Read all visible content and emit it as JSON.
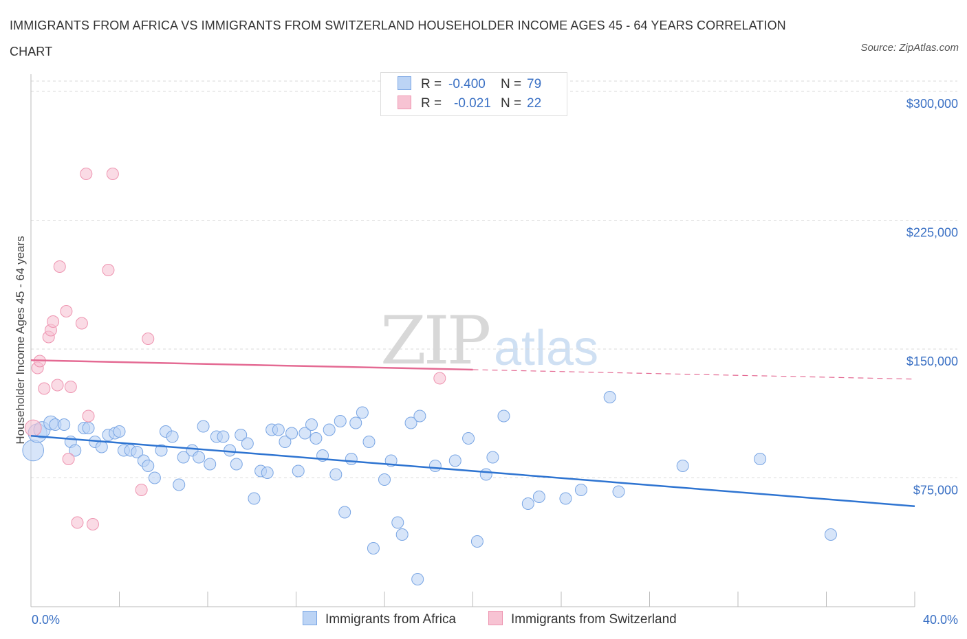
{
  "title": "IMMIGRANTS FROM AFRICA VS IMMIGRANTS FROM SWITZERLAND HOUSEHOLDER INCOME AGES 45 - 64 YEARS CORRELATION CHART",
  "source": "Source: ZipAtlas.com",
  "watermark": {
    "zip": "ZIP",
    "atlas": "atlas"
  },
  "legend": {
    "africa": {
      "r_label": "R =",
      "r_value": "-0.400",
      "n_label": "N =",
      "n_value": "79"
    },
    "switzerland": {
      "r_label": "R =",
      "r_value": "-0.021",
      "n_label": "N =",
      "n_value": "22"
    }
  },
  "bottom_legend": {
    "africa": "Immigrants from Africa",
    "switzerland": "Immigrants from Switzerland"
  },
  "colors": {
    "africa_fill": "#bcd4f5",
    "africa_stroke": "#7aa6e4",
    "africa_line": "#2e74d1",
    "swiss_fill": "#f7c3d3",
    "swiss_stroke": "#ee94b0",
    "swiss_line": "#e46a93",
    "grid": "#d9d9d9",
    "tick": "#3a70c4"
  },
  "chart_data": {
    "type": "scatter",
    "title": "IMMIGRANTS FROM AFRICA VS IMMIGRANTS FROM SWITZERLAND HOUSEHOLDER INCOME AGES 45 - 64 YEARS CORRELATION CHART",
    "xlabel": "",
    "ylabel": "Householder Income Ages 45 - 64 years",
    "xlim": [
      0,
      40
    ],
    "ylim": [
      0,
      300000
    ],
    "x_tick_labels": [
      "0.0%",
      "40.0%"
    ],
    "y_ticks": [
      75000,
      150000,
      225000,
      300000
    ],
    "y_tick_labels": [
      "$75,000",
      "$150,000",
      "$225,000",
      "$300,000"
    ],
    "grid": true,
    "legend_position": "top-center",
    "series": [
      {
        "name": "Immigrants from Africa",
        "points": [
          [
            0.1,
            91000,
            1.8
          ],
          [
            0.3,
            101000,
            1.6
          ],
          [
            0.5,
            103000,
            1.4
          ],
          [
            0.9,
            107000,
            1.2
          ],
          [
            1.1,
            106000,
            1.0
          ],
          [
            1.5,
            106000,
            1.0
          ],
          [
            1.8,
            96000,
            1.0
          ],
          [
            2.0,
            91000,
            1.0
          ],
          [
            2.4,
            104000,
            1.0
          ],
          [
            2.6,
            104000,
            1.0
          ],
          [
            2.9,
            96000,
            1.0
          ],
          [
            3.2,
            93000,
            1.0
          ],
          [
            3.5,
            100000,
            1.0
          ],
          [
            3.8,
            101000,
            1.0
          ],
          [
            4.0,
            102000,
            1.0
          ],
          [
            4.2,
            91000,
            1.0
          ],
          [
            4.5,
            91000,
            1.0
          ],
          [
            4.8,
            90000,
            1.0
          ],
          [
            5.1,
            85000,
            1.0
          ],
          [
            5.3,
            82000,
            1.0
          ],
          [
            5.6,
            75000,
            1.0
          ],
          [
            5.9,
            91000,
            1.0
          ],
          [
            6.1,
            102000,
            1.0
          ],
          [
            6.4,
            99000,
            1.0
          ],
          [
            6.7,
            71000,
            1.0
          ],
          [
            6.9,
            87000,
            1.0
          ],
          [
            7.3,
            91000,
            1.0
          ],
          [
            7.6,
            87000,
            1.0
          ],
          [
            7.8,
            105000,
            1.0
          ],
          [
            8.1,
            83000,
            1.0
          ],
          [
            8.4,
            99000,
            1.0
          ],
          [
            8.7,
            99000,
            1.0
          ],
          [
            9.0,
            91000,
            1.0
          ],
          [
            9.3,
            83000,
            1.0
          ],
          [
            9.5,
            100000,
            1.0
          ],
          [
            9.8,
            95000,
            1.0
          ],
          [
            10.1,
            63000,
            1.0
          ],
          [
            10.4,
            79000,
            1.0
          ],
          [
            10.7,
            78000,
            1.0
          ],
          [
            10.9,
            103000,
            1.0
          ],
          [
            11.2,
            103000,
            1.0
          ],
          [
            11.5,
            96000,
            1.0
          ],
          [
            11.8,
            101000,
            1.0
          ],
          [
            12.1,
            79000,
            1.0
          ],
          [
            12.4,
            101000,
            1.0
          ],
          [
            12.7,
            106000,
            1.0
          ],
          [
            12.9,
            98000,
            1.0
          ],
          [
            13.2,
            88000,
            1.0
          ],
          [
            13.5,
            103000,
            1.0
          ],
          [
            13.8,
            77000,
            1.0
          ],
          [
            14.0,
            108000,
            1.0
          ],
          [
            14.2,
            55000,
            1.0
          ],
          [
            14.5,
            86000,
            1.0
          ],
          [
            14.7,
            107000,
            1.0
          ],
          [
            15.0,
            113000,
            1.0
          ],
          [
            15.3,
            96000,
            1.0
          ],
          [
            15.5,
            34000,
            1.0
          ],
          [
            16.0,
            74000,
            1.0
          ],
          [
            16.3,
            85000,
            1.0
          ],
          [
            16.6,
            49000,
            1.0
          ],
          [
            16.8,
            42000,
            1.0
          ],
          [
            17.2,
            107000,
            1.0
          ],
          [
            17.5,
            16000,
            1.0
          ],
          [
            17.6,
            111000,
            1.0
          ],
          [
            18.3,
            82000,
            1.0
          ],
          [
            19.2,
            85000,
            1.0
          ],
          [
            19.8,
            98000,
            1.0
          ],
          [
            20.2,
            38000,
            1.0
          ],
          [
            20.6,
            77000,
            1.0
          ],
          [
            20.9,
            87000,
            1.0
          ],
          [
            21.4,
            111000,
            1.0
          ],
          [
            22.5,
            60000,
            1.0
          ],
          [
            23.0,
            64000,
            1.0
          ],
          [
            24.2,
            63000,
            1.0
          ],
          [
            24.9,
            68000,
            1.0
          ],
          [
            26.2,
            122000,
            1.0
          ],
          [
            26.6,
            67000,
            1.0
          ],
          [
            29.5,
            82000,
            1.0
          ],
          [
            33.0,
            86000,
            1.0
          ],
          [
            36.2,
            42000,
            1.0
          ]
        ],
        "trend": {
          "x0": 0,
          "y0": 99500,
          "x1": 40,
          "y1": 58500,
          "style": "solid"
        }
      },
      {
        "name": "Immigrants from Switzerland",
        "points": [
          [
            0.1,
            104000,
            1.4
          ],
          [
            0.3,
            139000,
            1.0
          ],
          [
            0.4,
            143000,
            1.0
          ],
          [
            0.6,
            127000,
            1.0
          ],
          [
            0.8,
            157000,
            1.0
          ],
          [
            0.9,
            161000,
            1.0
          ],
          [
            1.0,
            166000,
            1.0
          ],
          [
            1.2,
            129000,
            1.0
          ],
          [
            1.3,
            198000,
            1.0
          ],
          [
            1.6,
            172000,
            1.0
          ],
          [
            1.7,
            86000,
            1.0
          ],
          [
            1.8,
            128000,
            1.0
          ],
          [
            2.1,
            49000,
            1.0
          ],
          [
            2.3,
            165000,
            1.0
          ],
          [
            2.5,
            252000,
            1.0
          ],
          [
            2.6,
            111000,
            1.0
          ],
          [
            2.8,
            48000,
            1.0
          ],
          [
            3.5,
            196000,
            1.0
          ],
          [
            3.7,
            252000,
            1.0
          ],
          [
            5.0,
            68000,
            1.0
          ],
          [
            5.3,
            156000,
            1.0
          ],
          [
            18.5,
            133000,
            1.0
          ]
        ],
        "trend": {
          "x0": 0,
          "y0": 143500,
          "x1": 20,
          "y1": 138000,
          "x_dash_end": 40,
          "y_dash_end": 132500,
          "style": "solid-then-dashed"
        }
      }
    ]
  }
}
